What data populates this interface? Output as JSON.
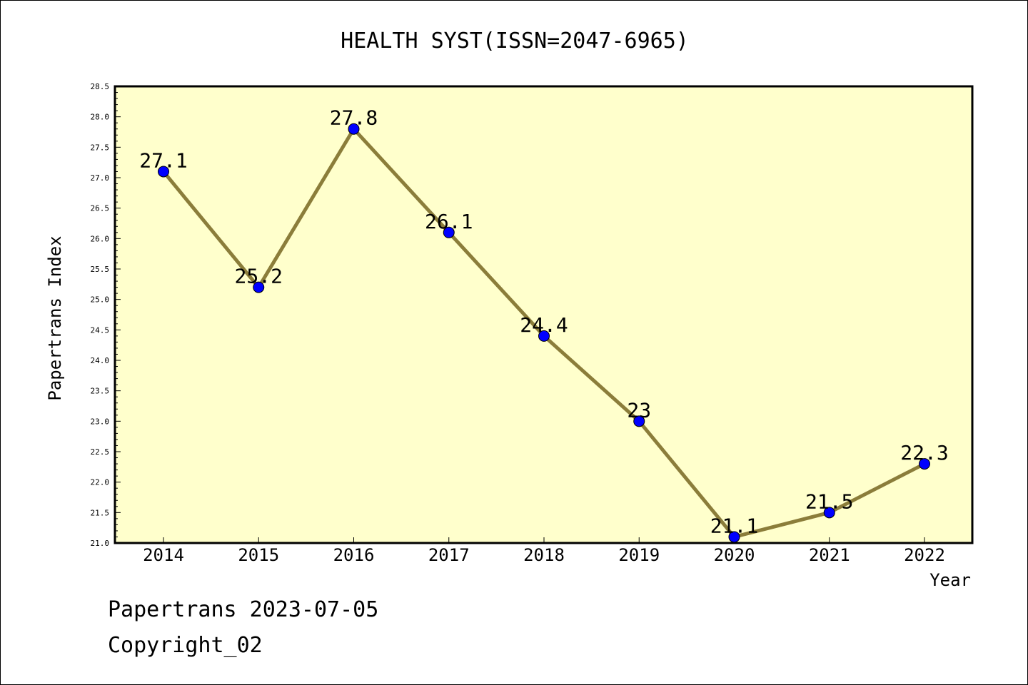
{
  "chart_data": {
    "type": "line",
    "title": "HEALTH SYST(ISSN=2047-6965)",
    "xlabel": "Year",
    "ylabel": "Papertrans Index",
    "categories": [
      "2014",
      "2015",
      "2016",
      "2017",
      "2018",
      "2019",
      "2020",
      "2021",
      "2022"
    ],
    "series": [
      {
        "values": [
          27.1,
          25.2,
          27.8,
          26.1,
          24.4,
          23.0,
          21.1,
          21.5,
          22.3
        ]
      }
    ],
    "data_labels": [
      "27.1",
      "25.2",
      "27.8",
      "26.1",
      "24.4",
      "23",
      "21.1",
      "21.5",
      "22.3"
    ],
    "ylim": [
      21.0,
      28.5
    ],
    "y_ticks": [
      "21.0",
      "21.5",
      "22.0",
      "22.5",
      "23.0",
      "23.5",
      "24.0",
      "24.5",
      "25.0",
      "25.5",
      "26.0",
      "26.5",
      "27.0",
      "27.5",
      "28.0",
      "28.5"
    ],
    "grid": false,
    "legend": "none",
    "colors": {
      "plot_background": "#ffffcc",
      "line": "#8b7d3a",
      "marker": "#0000ff"
    }
  },
  "footer": {
    "line1": "Papertrans 2023-07-05",
    "line2": "Copyright_02"
  }
}
